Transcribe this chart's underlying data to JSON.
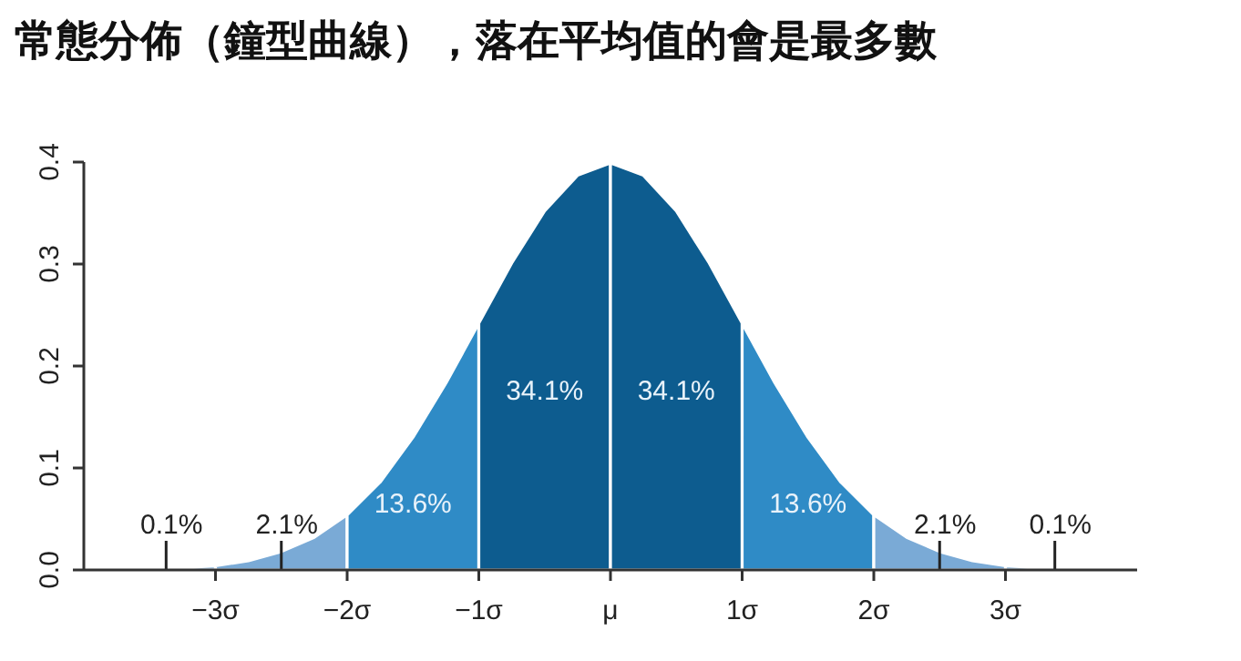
{
  "chart_data": {
    "type": "area",
    "title": "常態分佈（鐘型曲線），落在平均值的會是最多數",
    "xlim": [
      -4,
      4
    ],
    "ylim": [
      0,
      0.4
    ],
    "xticks": [
      {
        "value": -3,
        "label": "−3σ"
      },
      {
        "value": -2,
        "label": "−2σ"
      },
      {
        "value": -1,
        "label": "−1σ"
      },
      {
        "value": 0,
        "label": "μ"
      },
      {
        "value": 1,
        "label": "1σ"
      },
      {
        "value": 2,
        "label": "2σ"
      },
      {
        "value": 3,
        "label": "3σ"
      }
    ],
    "yticks": [
      {
        "value": 0,
        "label": "0.0"
      },
      {
        "value": 0.1,
        "label": "0.1"
      },
      {
        "value": 0.2,
        "label": "0.2"
      },
      {
        "value": 0.3,
        "label": "0.3"
      },
      {
        "value": 0.4,
        "label": "0.4"
      }
    ],
    "grid": false,
    "series": [
      {
        "name": "0.1%",
        "color": "#8fb8dc",
        "x": [
          -3.75,
          -3.5,
          -3.25,
          -3
        ],
        "values": [
          0.0,
          0.001,
          0.002,
          0.004
        ]
      },
      {
        "name": "2.1%",
        "color": "#7aaad6",
        "x": [
          -3,
          -2.75,
          -2.5,
          -2.25,
          -2
        ],
        "values": [
          0.004,
          0.009,
          0.018,
          0.032,
          0.054
        ]
      },
      {
        "name": "13.6%",
        "color": "#2f8bc6",
        "x": [
          -2,
          -1.75,
          -1.5,
          -1.25,
          -1
        ],
        "values": [
          0.054,
          0.086,
          0.13,
          0.183,
          0.242
        ]
      },
      {
        "name": "34.1%",
        "color": "#0d5c8f",
        "x": [
          -1,
          -0.75,
          -0.5,
          -0.25,
          0
        ],
        "values": [
          0.242,
          0.301,
          0.352,
          0.387,
          0.399
        ]
      },
      {
        "name": "34.1%",
        "color": "#0d5c8f",
        "x": [
          0,
          0.25,
          0.5,
          0.75,
          1
        ],
        "values": [
          0.399,
          0.387,
          0.352,
          0.301,
          0.242
        ]
      },
      {
        "name": "13.6%",
        "color": "#2f8bc6",
        "x": [
          1,
          1.25,
          1.5,
          1.75,
          2
        ],
        "values": [
          0.242,
          0.183,
          0.13,
          0.086,
          0.054
        ]
      },
      {
        "name": "2.1%",
        "color": "#7aaad6",
        "x": [
          2,
          2.25,
          2.5,
          2.75,
          3
        ],
        "values": [
          0.054,
          0.032,
          0.018,
          0.009,
          0.004
        ]
      },
      {
        "name": "0.1%",
        "color": "#8fb8dc",
        "x": [
          3,
          3.25,
          3.5,
          3.75
        ],
        "values": [
          0.004,
          0.002,
          0.001,
          0.0
        ]
      }
    ]
  }
}
